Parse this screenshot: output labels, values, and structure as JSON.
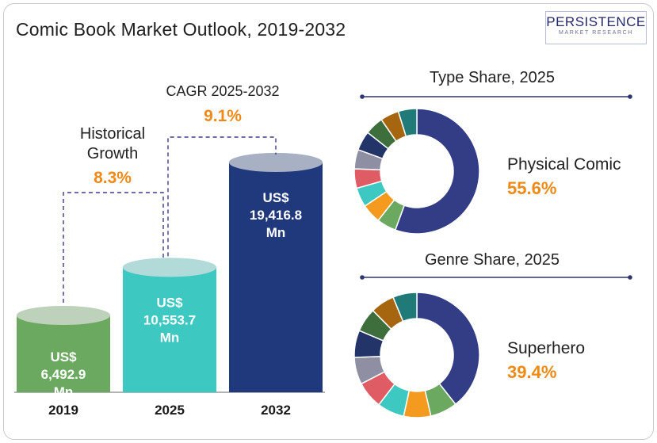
{
  "header": {
    "title": "Comic Book Market Outlook, 2019-2032",
    "logo_main": "PERSISTENCE",
    "logo_sub": "MARKET RESEARCH"
  },
  "chart_data": [
    {
      "type": "bar",
      "categories": [
        "2019",
        "2025",
        "2032"
      ],
      "values": [
        6492.9,
        10553.7,
        19416.8
      ],
      "value_labels": [
        [
          "US$",
          "6,492.9",
          "Mn"
        ],
        [
          "US$",
          "10,553.7",
          "Mn"
        ],
        [
          "US$",
          "19,416.8",
          "Mn"
        ]
      ],
      "colors": [
        "#6aa95f",
        "#3ec8c2",
        "#20397c"
      ],
      "annotations": {
        "historical_label_1": "Historical",
        "historical_label_2": "Growth",
        "historical_value": "8.3%",
        "cagr_label": "CAGR 2025-2032",
        "cagr_value": "9.1%"
      }
    },
    {
      "type": "pie",
      "title": "Type Share, 2025",
      "highlight_label": "Physical Comic",
      "highlight_value": "55.6%",
      "slices": [
        {
          "value": 55.6,
          "color": "#323d86"
        },
        {
          "value": 5.0,
          "color": "#6aa95f"
        },
        {
          "value": 5.0,
          "color": "#f39a1f"
        },
        {
          "value": 5.0,
          "color": "#3ec8c2"
        },
        {
          "value": 5.0,
          "color": "#e05c64"
        },
        {
          "value": 5.0,
          "color": "#8f8fa3"
        },
        {
          "value": 5.0,
          "color": "#223468"
        },
        {
          "value": 4.8,
          "color": "#3d6e3b"
        },
        {
          "value": 4.8,
          "color": "#a6660f"
        },
        {
          "value": 4.8,
          "color": "#1f7a78"
        }
      ]
    },
    {
      "type": "pie",
      "title": "Genre Share, 2025",
      "highlight_label": "Superhero",
      "highlight_value": "39.4%",
      "slices": [
        {
          "value": 39.4,
          "color": "#323d86"
        },
        {
          "value": 7.0,
          "color": "#6aa95f"
        },
        {
          "value": 7.0,
          "color": "#f39a1f"
        },
        {
          "value": 7.0,
          "color": "#3ec8c2"
        },
        {
          "value": 7.0,
          "color": "#e05c64"
        },
        {
          "value": 7.0,
          "color": "#8f8fa3"
        },
        {
          "value": 7.0,
          "color": "#223468"
        },
        {
          "value": 6.2,
          "color": "#3d6e3b"
        },
        {
          "value": 6.2,
          "color": "#a6660f"
        },
        {
          "value": 6.2,
          "color": "#1f7a78"
        }
      ]
    }
  ]
}
